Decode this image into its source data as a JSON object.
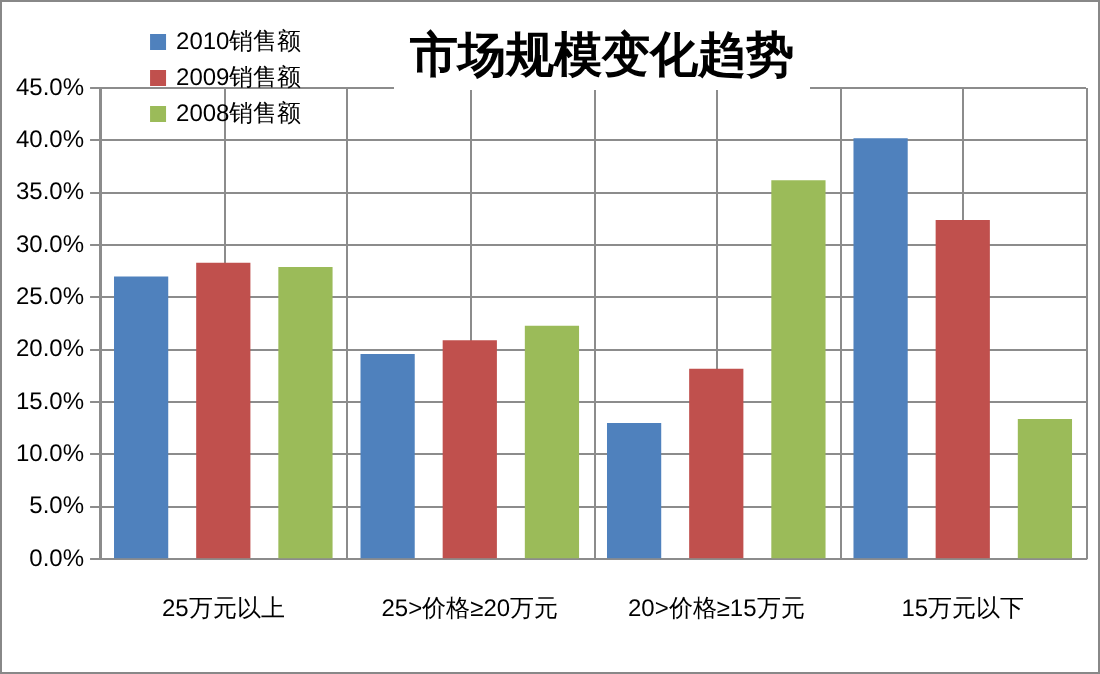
{
  "chart_data": {
    "type": "bar",
    "title": "市场规模变化趋势",
    "categories": [
      "25万元以上",
      "25>价格≥20万元",
      "20>价格≥15万元",
      "15万元以下"
    ],
    "series": [
      {
        "name": "2010销售额",
        "color": "#4f81bd",
        "values": [
          27.0,
          19.6,
          13.0,
          40.2
        ]
      },
      {
        "name": "2009销售额",
        "color": "#c0504d",
        "values": [
          28.3,
          20.9,
          18.2,
          32.4
        ]
      },
      {
        "name": "2008销售额",
        "color": "#9bbb59",
        "values": [
          27.9,
          22.3,
          36.2,
          13.4
        ]
      }
    ],
    "ylim": [
      0,
      45
    ],
    "yticks": [
      {
        "value": 0,
        "label": "0.0%"
      },
      {
        "value": 5,
        "label": "5.0%"
      },
      {
        "value": 10,
        "label": "10.0%"
      },
      {
        "value": 15,
        "label": "15.0%"
      },
      {
        "value": 20,
        "label": "20.0%"
      },
      {
        "value": 25,
        "label": "25.0%"
      },
      {
        "value": 30,
        "label": "30.0%"
      },
      {
        "value": 35,
        "label": "35.0%"
      },
      {
        "value": 40,
        "label": "40.0%"
      },
      {
        "value": 45,
        "label": "45.0%"
      }
    ],
    "grid": true,
    "legend": "top left"
  }
}
